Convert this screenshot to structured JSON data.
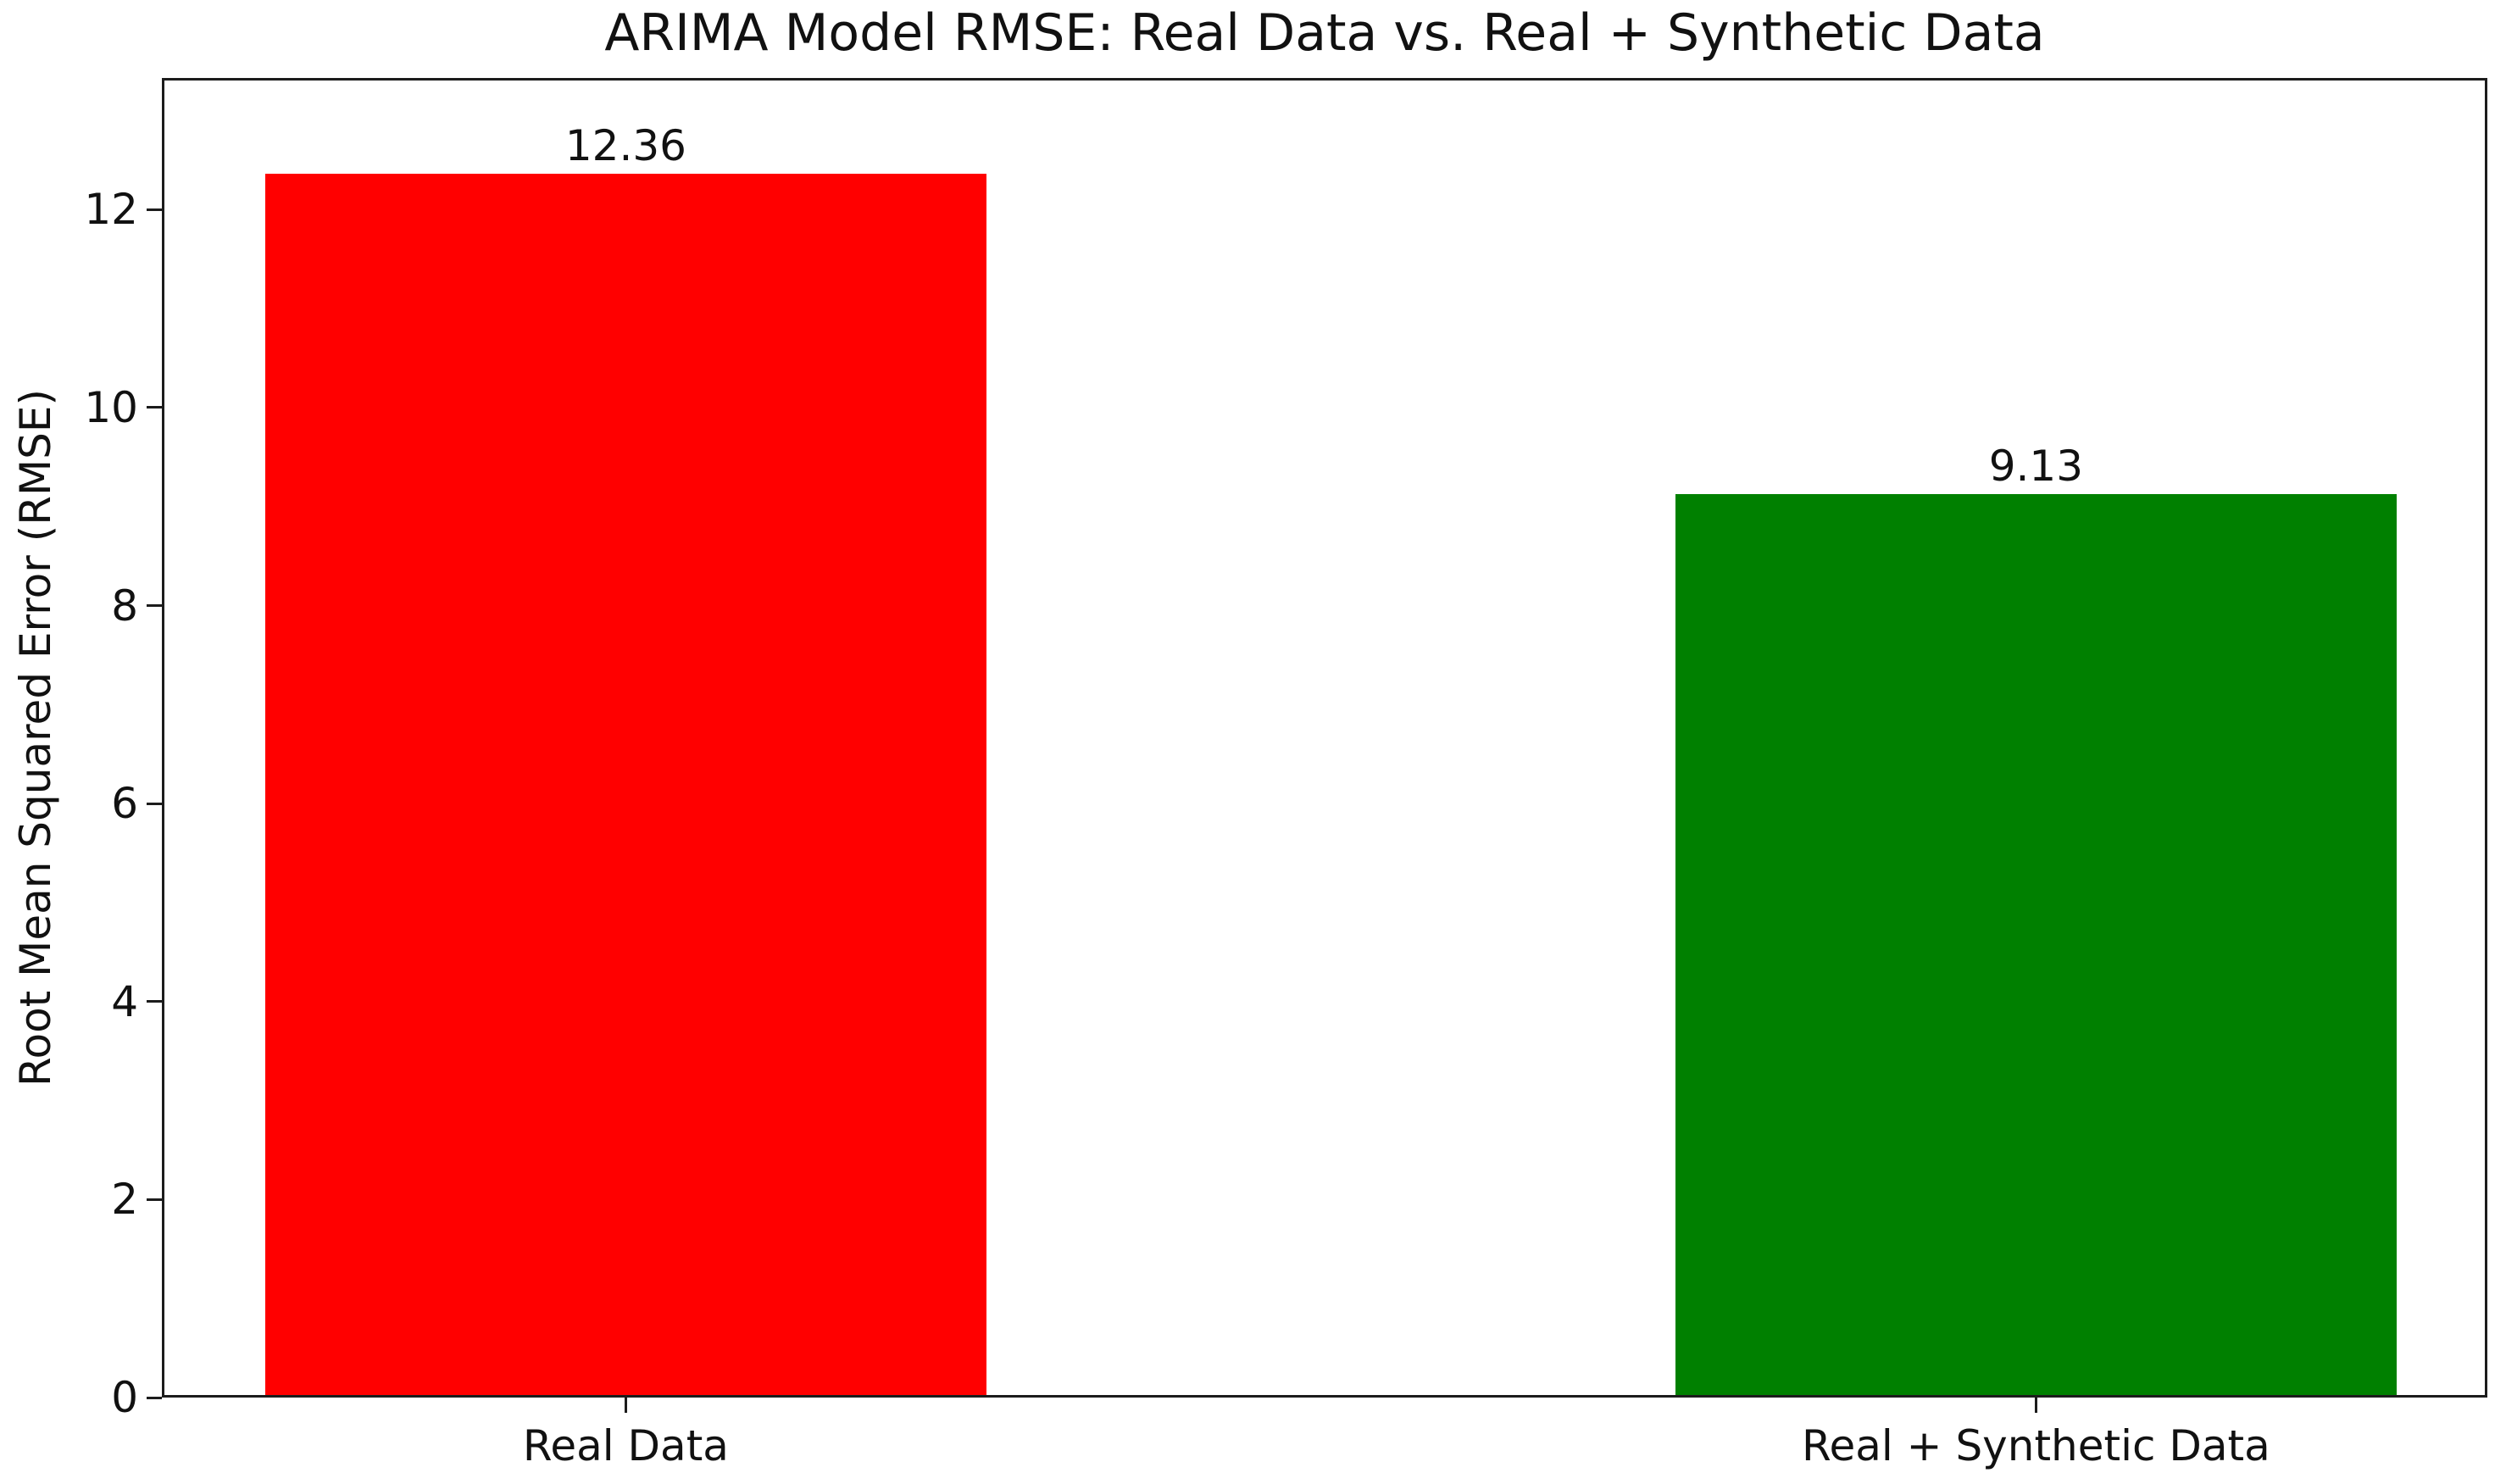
{
  "chart_data": {
    "type": "bar",
    "title": "ARIMA Model RMSE: Real Data vs. Real + Synthetic Data",
    "xlabel": "",
    "ylabel": "Root Mean Squared Error (RMSE)",
    "categories": [
      "Real Data",
      "Real + Synthetic Data"
    ],
    "values": [
      12.36,
      9.13
    ],
    "value_labels": [
      "12.36",
      "9.13"
    ],
    "bar_colors": [
      "#ff0000",
      "#008000"
    ],
    "yticks": [
      0,
      2,
      4,
      6,
      8,
      10,
      12
    ],
    "ylim": [
      0,
      13.33
    ],
    "grid": false,
    "legend": null,
    "background_color": "#ffffff",
    "spine_color": "#1c1c1c",
    "text_color": "#111111"
  }
}
